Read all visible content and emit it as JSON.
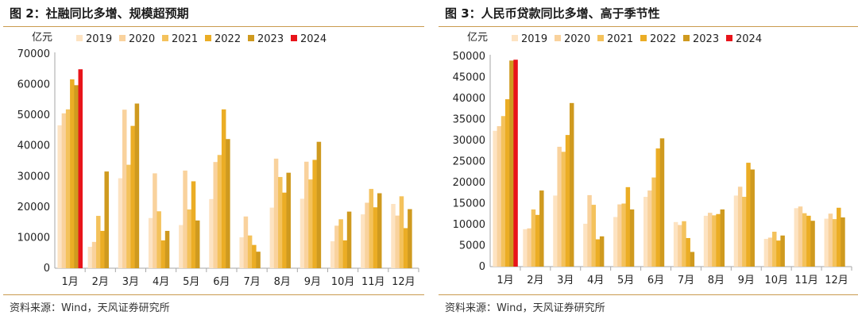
{
  "panels": [
    {
      "title": "图 2：社融同比多增、规模超预期",
      "source": "资料来源：Wind，天风证券研究所",
      "colors": [
        "#fde3c2",
        "#f9d29d",
        "#f4c25c",
        "#ebad25",
        "#cf9a1f",
        "#e8141a"
      ],
      "chart_data": {
        "type": "bar",
        "unit_label": "亿元",
        "categories": [
          "1月",
          "2月",
          "3月",
          "4月",
          "5月",
          "6月",
          "7月",
          "8月",
          "9月",
          "10月",
          "11月",
          "12月"
        ],
        "ylim": [
          0,
          70000
        ],
        "yticks": [
          0,
          10000,
          20000,
          30000,
          40000,
          50000,
          60000,
          70000
        ],
        "legend_position": "top",
        "series": [
          {
            "name": "2019",
            "values": [
              46700,
              7000,
              29400,
              16400,
              14100,
              22600,
              10100,
              19800,
              22700,
              8800,
              17600,
              21000
            ]
          },
          {
            "name": "2020",
            "values": [
              50600,
              8600,
              51800,
              31000,
              31900,
              34700,
              16900,
              35800,
              34800,
              13900,
              21400,
              17200
            ]
          },
          {
            "name": "2021",
            "values": [
              51900,
              17100,
              33800,
              18600,
              19200,
              37000,
              10700,
              29800,
              29000,
              16000,
              25900,
              23500
            ]
          },
          {
            "name": "2022",
            "values": [
              61700,
              12200,
              46500,
              9100,
              28400,
              51900,
              7600,
              24700,
              35400,
              9100,
              19900,
              13100
            ]
          },
          {
            "name": "2023",
            "values": [
              59800,
              31600,
              53800,
              12200,
              15600,
              42200,
              5400,
              31200,
              41300,
              18500,
              24500,
              19300
            ]
          },
          {
            "name": "2024",
            "values": [
              65000,
              null,
              null,
              null,
              null,
              null,
              null,
              null,
              null,
              null,
              null,
              null
            ]
          }
        ]
      }
    },
    {
      "title": "图 3：人民币贷款同比多增、高于季节性",
      "source": "资料来源：Wind，天风证券研究所",
      "colors": [
        "#fde3c2",
        "#f9d29d",
        "#f4c25c",
        "#ebad25",
        "#cf9a1f",
        "#e8141a"
      ],
      "chart_data": {
        "type": "bar",
        "unit_label": "亿元",
        "categories": [
          "1月",
          "2月",
          "3月",
          "4月",
          "5月",
          "6月",
          "7月",
          "8月",
          "9月",
          "10月",
          "11月",
          "12月"
        ],
        "ylim": [
          0,
          50000
        ],
        "yticks": [
          0,
          5000,
          10000,
          15000,
          20000,
          25000,
          30000,
          35000,
          40000,
          45000,
          50000
        ],
        "legend_position": "top",
        "series": [
          {
            "name": "2019",
            "values": [
              32300,
              8900,
              16900,
              10200,
              11800,
              16600,
              10600,
              12100,
              16900,
              6600,
              13900,
              11400
            ]
          },
          {
            "name": "2020",
            "values": [
              33400,
              9100,
              28500,
              17000,
              14800,
              18100,
              9900,
              12800,
              19000,
              6900,
              14300,
              12600
            ]
          },
          {
            "name": "2021",
            "values": [
              35800,
              13600,
              27300,
              14700,
              15000,
              21200,
              10800,
              12200,
              16600,
              8300,
              12700,
              11300
            ]
          },
          {
            "name": "2022",
            "values": [
              39800,
              12300,
              31300,
              6500,
              18900,
              28100,
              6800,
              12500,
              24700,
              6200,
              12100,
              14000
            ]
          },
          {
            "name": "2023",
            "values": [
              49000,
              18100,
              38900,
              7200,
              13600,
              30500,
              3500,
              13600,
              23100,
              7400,
              10900,
              11700
            ]
          },
          {
            "name": "2024",
            "values": [
              49200,
              null,
              null,
              null,
              null,
              null,
              null,
              null,
              null,
              null,
              null,
              null
            ]
          }
        ]
      }
    }
  ]
}
